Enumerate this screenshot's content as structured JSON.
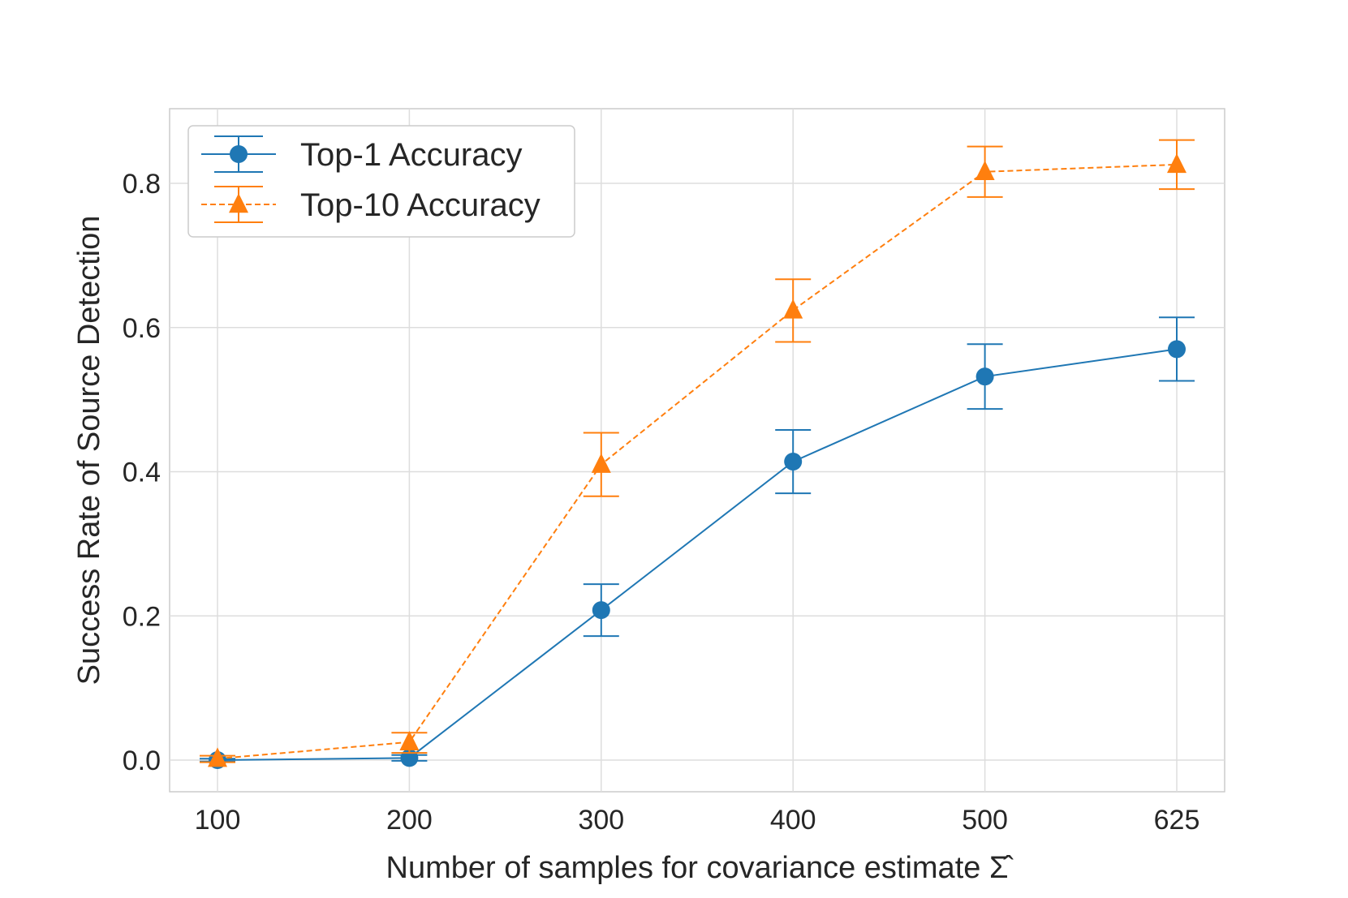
{
  "chart_data": {
    "type": "line",
    "title": "",
    "xlabel": "Number of samples for covariance estimate",
    "xlabel_symbol": "Σ̂",
    "ylabel": "Success Rate of Source Detection",
    "categories": [
      "100",
      "200",
      "300",
      "400",
      "500",
      "625"
    ],
    "ylim": [
      -0.045,
      0.9
    ],
    "yticks": [
      "0.0",
      "0.2",
      "0.4",
      "0.6",
      "0.8"
    ],
    "ytick_values": [
      0.0,
      0.2,
      0.4,
      0.6,
      0.8
    ],
    "grid": true,
    "legend_position": "top-left",
    "series": [
      {
        "name": "Top-1 Accuracy",
        "marker": "circle",
        "linestyle": "solid",
        "color": "#1f77b4",
        "values": [
          0.0,
          0.003,
          0.208,
          0.414,
          0.532,
          0.57
        ],
        "err_low": [
          -0.002,
          -0.001,
          0.172,
          0.37,
          0.487,
          0.526
        ],
        "err_high": [
          0.002,
          0.007,
          0.244,
          0.458,
          0.577,
          0.614
        ]
      },
      {
        "name": "Top-10 Accuracy",
        "marker": "triangle",
        "linestyle": "dashed",
        "color": "#ff7f0e",
        "values": [
          0.002,
          0.025,
          0.41,
          0.624,
          0.816,
          0.826
        ],
        "err_low": [
          -0.003,
          0.01,
          0.366,
          0.58,
          0.781,
          0.792
        ],
        "err_high": [
          0.006,
          0.038,
          0.454,
          0.667,
          0.851,
          0.86
        ]
      }
    ]
  }
}
